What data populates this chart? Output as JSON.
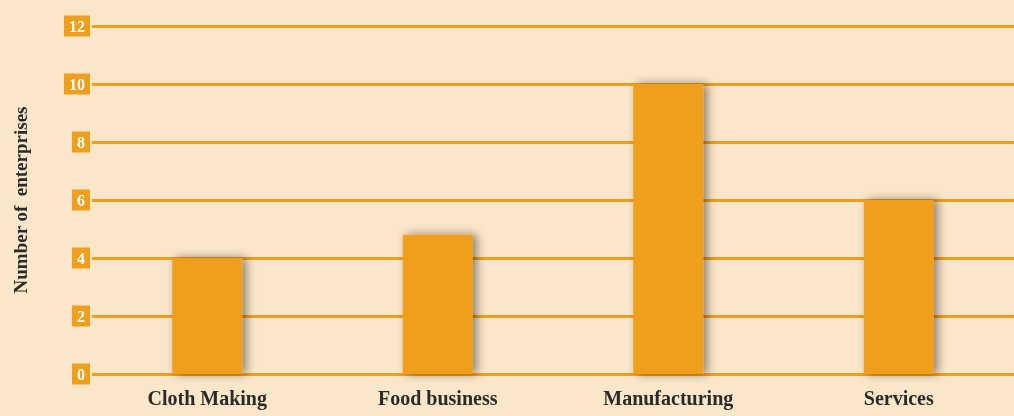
{
  "chart_data": {
    "type": "bar",
    "ylabel": "Number of  enterprises",
    "categories": [
      "Cloth Making",
      "Food business",
      "Manufacturing",
      "Services"
    ],
    "values": [
      4,
      4.8,
      10,
      6
    ],
    "color": "#ef9f1c",
    "ylim": [
      0,
      12
    ],
    "yticks": [
      0,
      2,
      4,
      6,
      8,
      10,
      12
    ],
    "grid": "y"
  }
}
